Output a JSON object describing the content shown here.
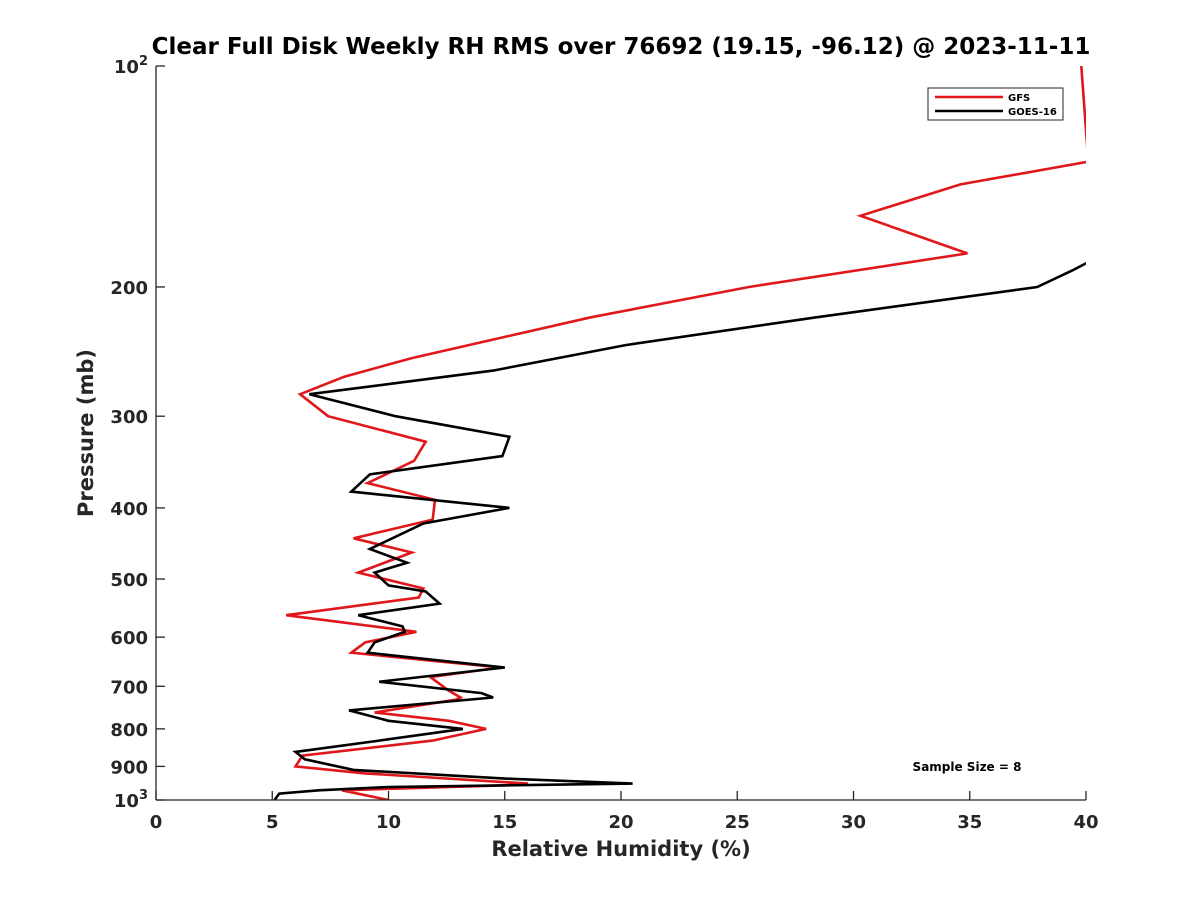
{
  "chart_data": {
    "type": "line",
    "title": "Clear Full Disk Weekly RH RMS over 76692 (19.15, -96.12) @ 2023-11-11",
    "xlabel": "Relative Humidity (%)",
    "ylabel": "Pressure (mb)",
    "xlim": [
      0,
      40
    ],
    "ylim": [
      100,
      1000
    ],
    "y_scale": "log",
    "y_reversed": true,
    "x_ticks": [
      0,
      5,
      10,
      15,
      20,
      25,
      30,
      35,
      40
    ],
    "x_tick_labels": [
      "0",
      "5",
      "10",
      "15",
      "20",
      "25",
      "30",
      "35",
      "40"
    ],
    "y_ticks": [
      100,
      200,
      300,
      400,
      500,
      600,
      700,
      800,
      900,
      1000
    ],
    "y_tick_labels": [
      {
        "base": "10",
        "exp": "2"
      },
      {
        "base": "200",
        "exp": ""
      },
      {
        "base": "300",
        "exp": ""
      },
      {
        "base": "400",
        "exp": ""
      },
      {
        "base": "500",
        "exp": ""
      },
      {
        "base": "600",
        "exp": ""
      },
      {
        "base": "700",
        "exp": ""
      },
      {
        "base": "800",
        "exp": ""
      },
      {
        "base": "900",
        "exp": ""
      },
      {
        "base": "10",
        "exp": "3"
      }
    ],
    "grid": false,
    "legend_position": "top-right",
    "annotation": "Sample Size = 8",
    "series": [
      {
        "name": "GFS",
        "color": "#e0181c",
        "points": [
          [
            39.8,
            100
          ],
          [
            40.1,
            135
          ],
          [
            34.6,
            145
          ],
          [
            30.3,
            160
          ],
          [
            34.9,
            180
          ],
          [
            25.5,
            200
          ],
          [
            18.7,
            220
          ],
          [
            11.0,
            250
          ],
          [
            8.1,
            265
          ],
          [
            6.2,
            280
          ],
          [
            7.4,
            300
          ],
          [
            11.6,
            325
          ],
          [
            11.1,
            345
          ],
          [
            9.1,
            370
          ],
          [
            12.0,
            390
          ],
          [
            11.9,
            415
          ],
          [
            8.5,
            440
          ],
          [
            11.0,
            460
          ],
          [
            8.7,
            490
          ],
          [
            11.5,
            515
          ],
          [
            11.3,
            530
          ],
          [
            5.6,
            560
          ],
          [
            11.2,
            590
          ],
          [
            9.0,
            610
          ],
          [
            8.4,
            630
          ],
          [
            14.8,
            660
          ],
          [
            11.8,
            680
          ],
          [
            12.6,
            710
          ],
          [
            13.1,
            725
          ],
          [
            12.9,
            730
          ],
          [
            9.4,
            760
          ],
          [
            12.6,
            780
          ],
          [
            14.2,
            800
          ],
          [
            11.9,
            830
          ],
          [
            6.3,
            870
          ],
          [
            6.0,
            900
          ],
          [
            9.0,
            920
          ],
          [
            16.0,
            950
          ],
          [
            15.0,
            955
          ],
          [
            8.0,
            970
          ],
          [
            10.0,
            1000
          ]
        ]
      },
      {
        "name": "GOES-16",
        "color": "#000000",
        "points": [
          [
            40.1,
            185
          ],
          [
            39.4,
            190
          ],
          [
            37.9,
            200
          ],
          [
            28.4,
            220
          ],
          [
            20.2,
            240
          ],
          [
            14.5,
            260
          ],
          [
            10.5,
            270
          ],
          [
            6.6,
            280
          ],
          [
            10.3,
            300
          ],
          [
            15.2,
            320
          ],
          [
            14.9,
            340
          ],
          [
            9.2,
            360
          ],
          [
            8.4,
            380
          ],
          [
            15.2,
            400
          ],
          [
            11.5,
            420
          ],
          [
            9.2,
            455
          ],
          [
            10.8,
            475
          ],
          [
            9.4,
            490
          ],
          [
            10.0,
            510
          ],
          [
            11.6,
            520
          ],
          [
            12.2,
            540
          ],
          [
            8.7,
            560
          ],
          [
            10.6,
            580
          ],
          [
            10.7,
            590
          ],
          [
            9.4,
            610
          ],
          [
            9.1,
            630
          ],
          [
            15.0,
            660
          ],
          [
            9.6,
            690
          ],
          [
            14.0,
            715
          ],
          [
            14.5,
            725
          ],
          [
            8.3,
            755
          ],
          [
            10.0,
            780
          ],
          [
            13.2,
            800
          ],
          [
            9.6,
            830
          ],
          [
            6.0,
            860
          ],
          [
            6.4,
            880
          ],
          [
            8.5,
            910
          ],
          [
            15.0,
            935
          ],
          [
            20.5,
            950
          ],
          [
            10.0,
            960
          ],
          [
            7.0,
            970
          ],
          [
            5.3,
            980
          ],
          [
            5.1,
            1000
          ]
        ]
      }
    ]
  }
}
